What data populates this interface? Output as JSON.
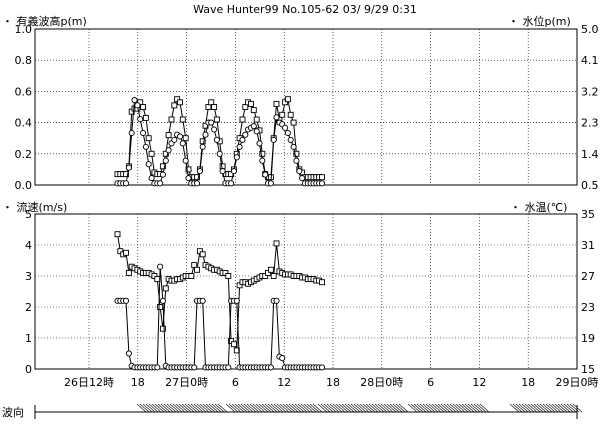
{
  "header": {
    "title": "Wave Hunter99 No.105-62 03/ 9/29  0:31"
  },
  "chart_data": [
    {
      "type": "line",
      "left_axis_label": "・ 有義波高p(m)",
      "right_axis_label": "・ 水位p(m)",
      "left_ticks": [
        "1.0",
        "0.8",
        "0.6",
        "0.4",
        "0.2",
        "0.0"
      ],
      "right_ticks": [
        "5.0",
        "4.1",
        "3.2",
        "2.3",
        "1.4",
        "0.5"
      ],
      "ylim_left": [
        0,
        1.0
      ],
      "ylim_right": [
        0.5,
        5.0
      ],
      "grid": true,
      "series": [
        {
          "marker": "square",
          "axis": "left",
          "x": [
            0,
            1,
            2,
            3,
            4,
            5,
            6,
            7,
            8,
            9,
            10,
            11,
            12,
            13,
            14,
            15,
            16,
            17,
            18,
            19,
            20,
            21,
            22,
            23,
            24,
            25,
            26,
            27,
            28,
            29,
            30,
            31,
            32,
            33,
            34,
            35,
            36,
            37,
            38,
            39,
            40,
            41,
            42,
            43,
            44,
            45,
            46,
            47,
            48,
            49,
            50,
            51,
            52,
            53,
            54,
            55,
            56,
            57,
            58,
            59,
            60,
            61,
            62,
            63,
            64,
            65,
            66,
            67,
            68,
            69,
            70,
            71,
            72
          ],
          "y": [
            0.07,
            0.07,
            0.07,
            0.07,
            0.12,
            0.47,
            0.49,
            0.49,
            0.53,
            0.5,
            0.43,
            0.3,
            0.2,
            0.08,
            0.07,
            0.07,
            0.12,
            0.2,
            0.32,
            0.42,
            0.51,
            0.55,
            0.53,
            0.42,
            0.3,
            0.1,
            0.05,
            0.05,
            0.05,
            0.1,
            0.28,
            0.38,
            0.5,
            0.53,
            0.5,
            0.42,
            0.28,
            0.12,
            0.07,
            0.07,
            0.07,
            0.1,
            0.2,
            0.3,
            0.42,
            0.5,
            0.53,
            0.52,
            0.48,
            0.42,
            0.35,
            0.2,
            0.07,
            0.05,
            0.05,
            0.3,
            0.52,
            0.42,
            0.45,
            0.53,
            0.55,
            0.45,
            0.4,
            0.2,
            0.1,
            0.08,
            0.05,
            0.05,
            0.05,
            0.05,
            0.05,
            0.05,
            0.05
          ]
        },
        {
          "marker": "circle",
          "axis": "right",
          "y_right": [
            0.55,
            0.55,
            0.55,
            0.55,
            1.0,
            2.0,
            2.95,
            2.8,
            2.4,
            2.0,
            1.6,
            1.1,
            0.7,
            0.55,
            0.55,
            0.55,
            0.8,
            1.2,
            1.5,
            1.7,
            1.8,
            1.95,
            1.9,
            1.7,
            1.2,
            0.7,
            0.55,
            0.55,
            0.55,
            0.9,
            1.6,
            1.95,
            2.3,
            2.3,
            2.1,
            1.8,
            1.4,
            0.9,
            0.55,
            0.55,
            0.55,
            0.9,
            1.3,
            1.6,
            1.8,
            1.95,
            2.1,
            2.15,
            2.2,
            2.05,
            1.7,
            1.2,
            0.8,
            0.55,
            0.55,
            1.8,
            2.45,
            2.3,
            2.25,
            2.15,
            2.0,
            1.8,
            1.6,
            1.2,
            0.9,
            0.7,
            0.55,
            0.55,
            0.55,
            0.55,
            0.55,
            0.55,
            0.55
          ]
        }
      ]
    },
    {
      "type": "line",
      "left_axis_label": "・ 流速(m/s)",
      "right_axis_label": "・ 水温(℃)",
      "left_ticks": [
        "5",
        "4",
        "3",
        "2",
        "1",
        "0"
      ],
      "right_ticks": [
        "35",
        "31",
        "27",
        "23",
        "19",
        "15"
      ],
      "ylim_left": [
        0,
        5
      ],
      "ylim_right": [
        15,
        35
      ],
      "grid": true,
      "series": [
        {
          "marker": "square",
          "axis": "left",
          "x": [
            0,
            1,
            2,
            3,
            4,
            5,
            6,
            7,
            8,
            9,
            10,
            11,
            12,
            13,
            14,
            15,
            16,
            17,
            18,
            19,
            20,
            21,
            22,
            23,
            24,
            25,
            26,
            27,
            28,
            29,
            30,
            31,
            32,
            33,
            34,
            35,
            36,
            37,
            38,
            39,
            40,
            41,
            42,
            43,
            44,
            45,
            46,
            47,
            48,
            49,
            50,
            51,
            52,
            53,
            54,
            55,
            56,
            57,
            58,
            59,
            60,
            61,
            62,
            63,
            64,
            65,
            66,
            67,
            68,
            69,
            70,
            71,
            72
          ],
          "y": [
            4.35,
            3.8,
            3.7,
            3.75,
            3.1,
            3.3,
            3.25,
            3.2,
            3.15,
            3.1,
            3.1,
            3.1,
            3.05,
            3.0,
            2.9,
            2.0,
            1.3,
            2.6,
            2.9,
            2.85,
            2.85,
            2.9,
            2.9,
            2.95,
            3.0,
            3.0,
            3.0,
            3.35,
            3.2,
            3.8,
            3.7,
            3.35,
            3.3,
            3.25,
            3.2,
            3.2,
            3.15,
            3.1,
            3.1,
            3.0,
            0.9,
            0.8,
            0.6,
            2.7,
            2.8,
            2.8,
            2.75,
            2.8,
            2.85,
            2.9,
            2.95,
            3.0,
            3.0,
            3.1,
            3.2,
            3.0,
            4.05,
            3.15,
            3.1,
            3.05,
            3.05,
            3.05,
            3.0,
            3.0,
            3.0,
            2.95,
            2.95,
            2.9,
            2.9,
            2.9,
            2.85,
            2.85,
            2.8
          ]
        },
        {
          "marker": "circle",
          "axis": "left",
          "y": [
            2.2,
            2.2,
            2.2,
            2.2,
            0.5,
            0.1,
            0.05,
            0.05,
            0.05,
            0.05,
            0.05,
            0.05,
            0.05,
            0.05,
            0.05,
            3.3,
            2.2,
            0.1,
            0.05,
            0.05,
            0.05,
            0.05,
            0.05,
            0.05,
            0.05,
            0.05,
            0.05,
            0.05,
            2.2,
            2.2,
            2.2,
            0.05,
            0.05,
            0.05,
            0.05,
            0.05,
            0.05,
            0.05,
            0.05,
            0.05,
            2.2,
            2.2,
            2.2,
            0.05,
            0.05,
            0.05,
            0.05,
            0.05,
            0.05,
            0.05,
            0.05,
            0.05,
            0.05,
            0.05,
            0.05,
            2.2,
            2.2,
            0.4,
            0.35,
            0.05,
            0.05,
            0.05,
            0.05,
            0.05,
            0.05,
            0.05,
            0.05,
            0.05,
            0.05,
            0.05,
            0.05,
            0.05,
            0.05
          ]
        }
      ]
    }
  ],
  "x_axis": {
    "tick_labels": [
      "26日12時",
      "18",
      "27日0時",
      "6",
      "12",
      "18",
      "28日0時",
      "6",
      "12",
      "18",
      "29日0時"
    ]
  },
  "wave_direction": {
    "label": "波向"
  }
}
